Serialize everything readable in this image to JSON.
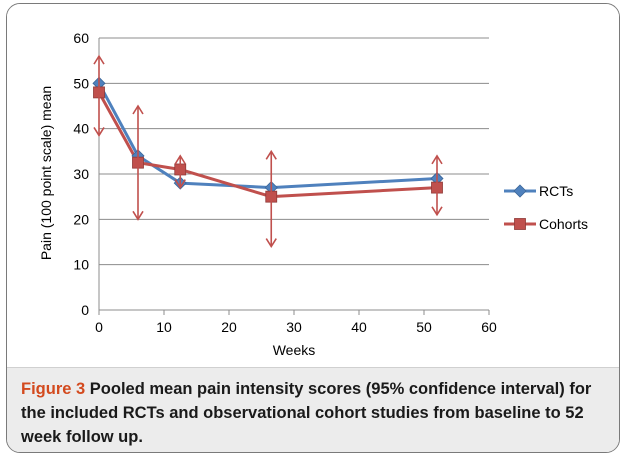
{
  "chart_data": {
    "type": "line",
    "title": "",
    "xlabel": "Weeks",
    "ylabel": "Pain  (100 point scale) mean",
    "xlim": [
      0,
      60
    ],
    "ylim": [
      0,
      60
    ],
    "x_ticks": [
      "0",
      "10",
      "20",
      "30",
      "40",
      "50",
      "60"
    ],
    "y_ticks": [
      "0",
      "10",
      "20",
      "30",
      "40",
      "50",
      "60"
    ],
    "grid": "horizontal",
    "legend_position": "right",
    "series": [
      {
        "name": "RCTs",
        "color": "#4f81bd",
        "marker": "diamond",
        "points": [
          {
            "x": 0,
            "y": 50
          },
          {
            "x": 6,
            "y": 34
          },
          {
            "x": 12.5,
            "y": 28
          },
          {
            "x": 26.5,
            "y": 27
          },
          {
            "x": 52,
            "y": 29
          }
        ]
      },
      {
        "name": "Cohorts",
        "color": "#c0504d",
        "marker": "square",
        "points": [
          {
            "x": 0,
            "y": 48,
            "ci": [
              38.5,
              56
            ]
          },
          {
            "x": 6,
            "y": 32.5,
            "ci": [
              20,
              45
            ]
          },
          {
            "x": 12.5,
            "y": 31,
            "ci": [
              27,
              34
            ]
          },
          {
            "x": 26.5,
            "y": 25,
            "ci": [
              14,
              35
            ]
          },
          {
            "x": 52,
            "y": 27,
            "ci": [
              21,
              34
            ]
          }
        ]
      }
    ]
  },
  "caption": {
    "label": "Figure 3",
    "text": "Pooled mean pain intensity scores (95% confidence interval) for the included RCTs and observational cohort studies from baseline to 52 week follow up."
  }
}
